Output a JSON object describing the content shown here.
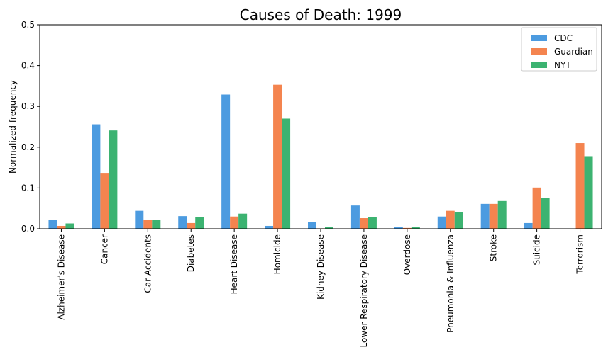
{
  "chart_data": {
    "type": "bar",
    "title": "Causes of Death: 1999",
    "xlabel": "",
    "ylabel": "Normalized frequency",
    "ylim": [
      0,
      0.5
    ],
    "yticks": [
      "0.0",
      "0.1",
      "0.2",
      "0.3",
      "0.4",
      "0.5"
    ],
    "grid": false,
    "legend_position": "top-right",
    "categories": [
      "Alzheimer's Disease",
      "Cancer",
      "Car Accidents",
      "Diabetes",
      "Heart Disease",
      "Homicide",
      "Kidney Disease",
      "Lower Respiratory Disease",
      "Overdose",
      "Pneumonia & Influenza",
      "Stroke",
      "Suicide",
      "Terrorism"
    ],
    "series": [
      {
        "name": "CDC",
        "color": "#4c9be0",
        "values": [
          0.021,
          0.256,
          0.044,
          0.031,
          0.329,
          0.007,
          0.017,
          0.057,
          0.005,
          0.03,
          0.061,
          0.014,
          0.0
        ]
      },
      {
        "name": "Guardian",
        "color": "#f4844f",
        "values": [
          0.007,
          0.137,
          0.021,
          0.014,
          0.03,
          0.353,
          0.001,
          0.026,
          0.002,
          0.044,
          0.061,
          0.101,
          0.21
        ]
      },
      {
        "name": "NYT",
        "color": "#3cb371",
        "values": [
          0.013,
          0.241,
          0.021,
          0.028,
          0.037,
          0.27,
          0.004,
          0.029,
          0.004,
          0.04,
          0.068,
          0.075,
          0.178
        ]
      }
    ]
  }
}
